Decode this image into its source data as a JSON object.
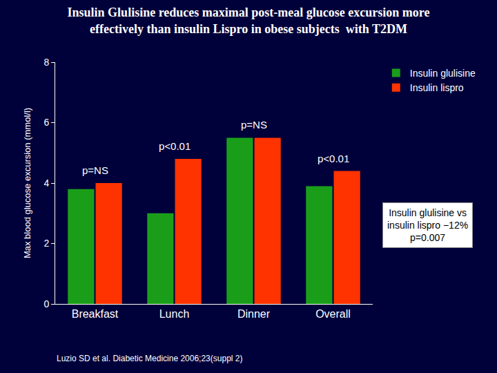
{
  "chart_data": {
    "type": "bar",
    "title": [
      "Insulin Glulisine reduces maximal post-meal glucose excursion more",
      "effectively than insulin Lispro in obese subjects  with T2DM"
    ],
    "y_label": "Max blood glucose excursion (mmol/l)",
    "categories": [
      "Breakfast",
      "Lunch",
      "Dinner",
      "Overall"
    ],
    "series": [
      {
        "name": "Insulin glulisine",
        "color": "#1a9e1a",
        "values": [
          3.8,
          3.0,
          5.5,
          3.9
        ]
      },
      {
        "name": "Insulin lispro",
        "color": "#ff3300",
        "values": [
          4.0,
          4.8,
          5.5,
          4.4
        ]
      }
    ],
    "ylim": [
      0,
      8
    ],
    "yticks": [
      0,
      2,
      4,
      6,
      8
    ],
    "grid": false,
    "legend": "top right",
    "data_labels": false,
    "annotations": [
      {
        "category": "Breakfast",
        "text": "p=NS"
      },
      {
        "category": "Lunch",
        "text": "p<0.01"
      },
      {
        "category": "Dinner",
        "text": "p=NS"
      },
      {
        "category": "Overall",
        "text": "p<0.01"
      }
    ],
    "note": [
      "Insulin glulisine vs",
      "insulin lispro −12%",
      "p=0.007"
    ],
    "source": "Luzio SD et al. Diabetic Medicine 2006;23(suppl 2)"
  }
}
